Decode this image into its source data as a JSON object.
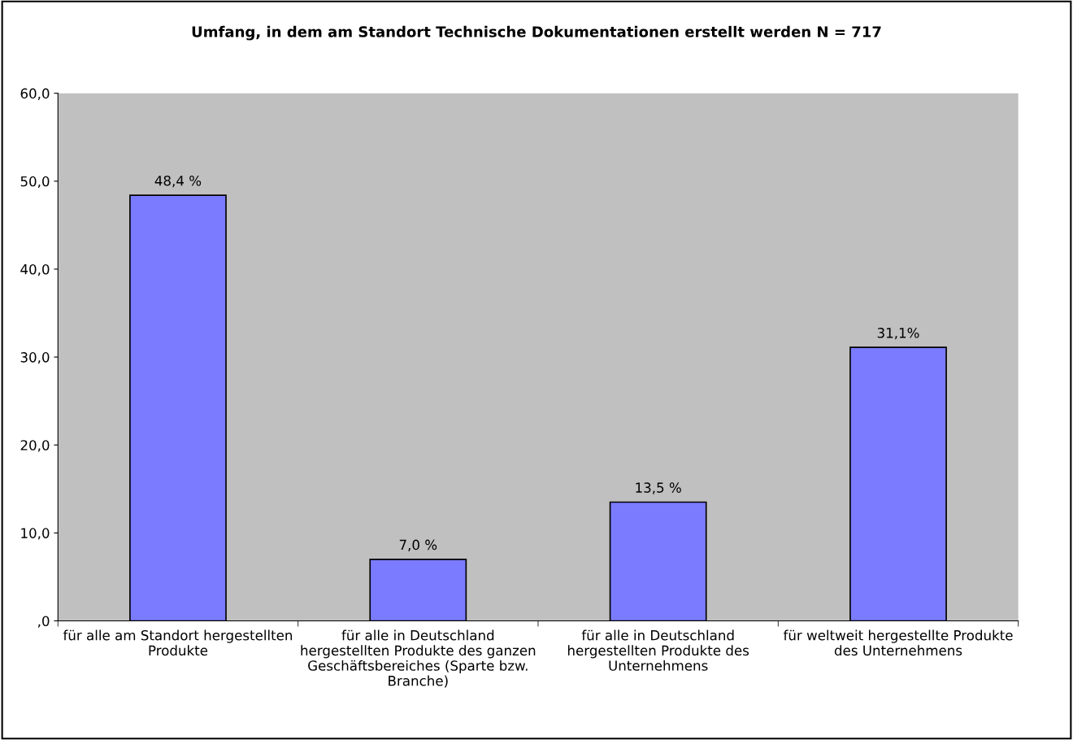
{
  "chart_data": {
    "type": "bar",
    "title": "Umfang, in dem am Standort Technische Dokumentationen erstellt werden N = 717",
    "categories": [
      "für alle am Standort hergestellten\nProdukte",
      "für alle in Deutschland\nhergestellten Produkte des ganzen\nGeschäftsbereiches (Sparte bzw.\nBranche)",
      "für alle in Deutschland\nhergestellten Produkte des\nUnternehmens",
      "für weltweit hergestellte Produkte\ndes Unternehmens"
    ],
    "values": [
      48.4,
      7.0,
      13.5,
      31.1
    ],
    "value_labels": [
      "48,4 %",
      "7,0 %",
      "13,5 %",
      "31,1%"
    ],
    "color": "#7b7bff",
    "ylim": [
      0,
      60
    ],
    "yticks": [
      {
        "value": 0,
        "label": ",0"
      },
      {
        "value": 10,
        "label": "10,0"
      },
      {
        "value": 20,
        "label": "20,0"
      },
      {
        "value": 30,
        "label": "30,0"
      },
      {
        "value": 40,
        "label": "40,0"
      },
      {
        "value": 50,
        "label": "50,0"
      },
      {
        "value": 60,
        "label": "60,0"
      }
    ],
    "grid": false,
    "legend": false
  }
}
